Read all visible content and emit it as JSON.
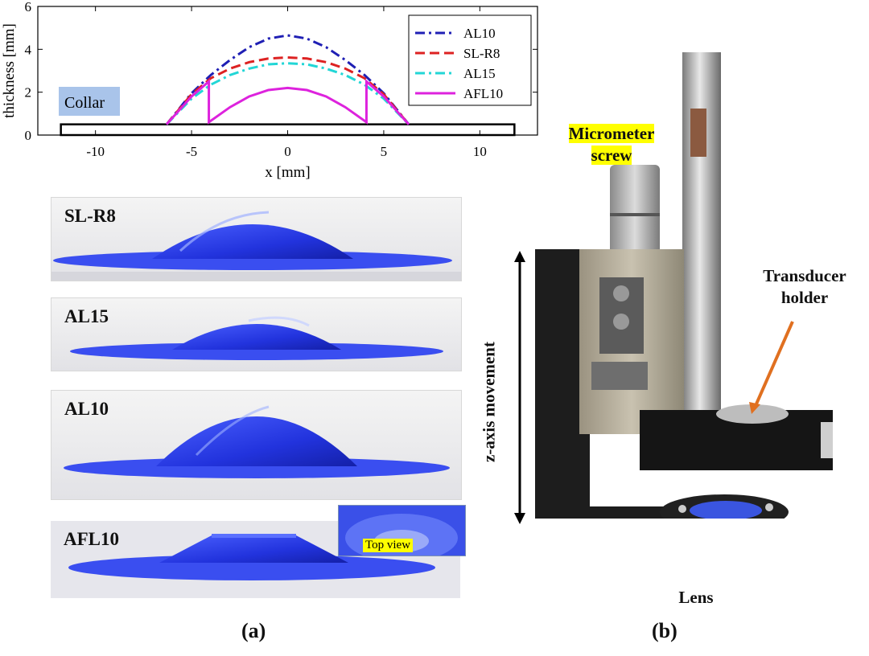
{
  "chart_data": {
    "type": "line",
    "title": "",
    "xlabel": "x [mm]",
    "ylabel": "thickness [mm]",
    "xlim": [
      -13,
      13
    ],
    "ylim": [
      0,
      6
    ],
    "xticks": [
      -10,
      -5,
      0,
      5,
      10
    ],
    "yticks": [
      0,
      2,
      4,
      6
    ],
    "grid": false,
    "legend_position": "top-right",
    "annotation": "Collar",
    "collar": {
      "x": [
        -11.8,
        11.8
      ],
      "y": [
        0,
        0.5
      ]
    },
    "series": [
      {
        "name": "AL10",
        "color": "#1f1fb4",
        "style": "dashdot",
        "x": [
          -6.3,
          -5,
          -4,
          -3,
          -2,
          -1,
          0,
          1,
          2,
          3,
          4,
          5,
          6.3
        ],
        "y": [
          0.5,
          1.95,
          2.8,
          3.5,
          4.1,
          4.5,
          4.65,
          4.5,
          4.1,
          3.5,
          2.8,
          1.95,
          0.5
        ]
      },
      {
        "name": "SL-R8",
        "color": "#dd2222",
        "style": "dashed",
        "x": [
          -6.3,
          -5,
          -4,
          -3,
          -2,
          -1,
          0,
          1,
          2,
          3,
          4,
          5,
          6.3
        ],
        "y": [
          0.5,
          1.9,
          2.65,
          3.1,
          3.4,
          3.57,
          3.62,
          3.57,
          3.4,
          3.1,
          2.65,
          1.9,
          0.5
        ]
      },
      {
        "name": "AL15",
        "color": "#22d6d6",
        "style": "dashdot",
        "x": [
          -6.3,
          -5,
          -4,
          -3,
          -2,
          -1,
          0,
          1,
          2,
          3,
          4,
          5,
          6.3
        ],
        "y": [
          0.5,
          1.7,
          2.35,
          2.8,
          3.1,
          3.3,
          3.35,
          3.3,
          3.1,
          2.8,
          2.35,
          1.7,
          0.5
        ]
      },
      {
        "name": "AFL10",
        "color": "#dd22dd",
        "style": "solid",
        "x": [
          -6.3,
          -5,
          -4.1,
          -4.1,
          -3,
          -2,
          -1,
          0,
          1,
          2,
          3,
          4.1,
          4.1,
          5,
          6.3
        ],
        "y": [
          0.5,
          1.8,
          2.5,
          0.6,
          1.3,
          1.8,
          2.1,
          2.2,
          2.1,
          1.8,
          1.3,
          0.6,
          2.5,
          1.8,
          0.5
        ]
      }
    ]
  },
  "photos": [
    {
      "label": "SL-R8"
    },
    {
      "label": "AL15"
    },
    {
      "label": "AL10"
    },
    {
      "label": "AFL10"
    }
  ],
  "inset": {
    "label": "Top view"
  },
  "annotations": {
    "micrometer": "Micrometer screw",
    "transducer": "Transducer holder",
    "lens": "Lens",
    "zaxis": "z-axis movement"
  },
  "captions": {
    "a": "(a)",
    "b": "(b)"
  }
}
